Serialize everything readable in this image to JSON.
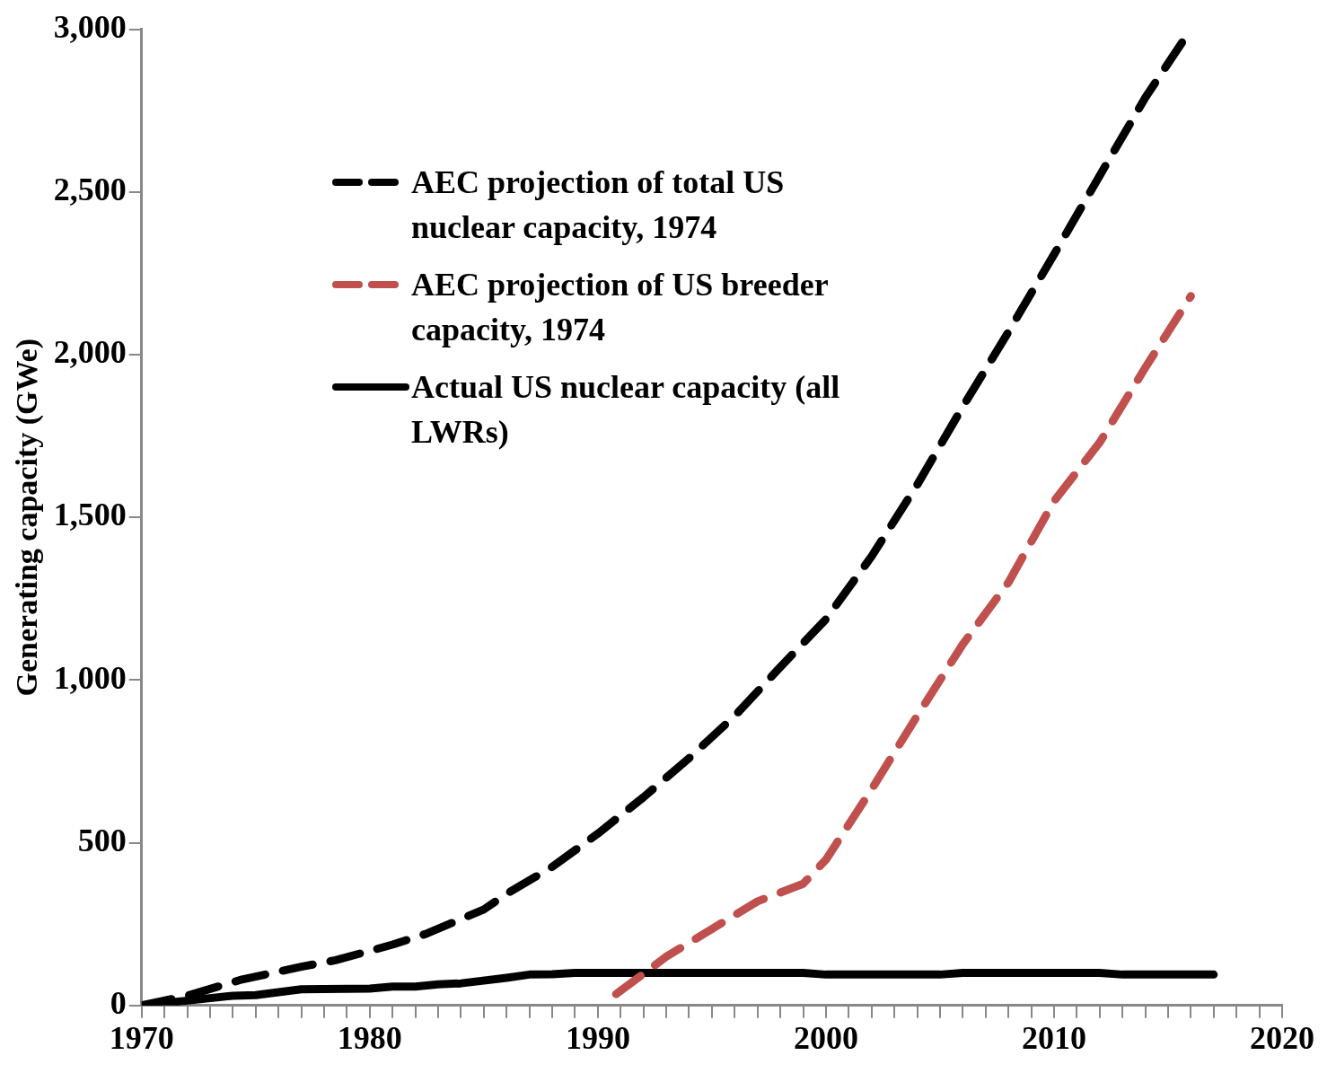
{
  "chart_data": {
    "type": "line",
    "ylabel": "Generating capacity (GWe)",
    "xlim": [
      1970,
      2020
    ],
    "xticks": [
      1970,
      {
        "value": 1971,
        "label": null
      },
      {
        "value": 1972,
        "label": null
      },
      {
        "value": 1973,
        "label": null
      },
      {
        "value": 1974,
        "label": null
      },
      {
        "value": 1975,
        "label": null
      },
      {
        "value": 1976,
        "label": null
      },
      {
        "value": 1977,
        "label": null
      },
      {
        "value": 1978,
        "label": null
      },
      {
        "value": 1979,
        "label": null
      },
      1980,
      {
        "value": 1981,
        "label": null
      },
      {
        "value": 1982,
        "label": null
      },
      {
        "value": 1983,
        "label": null
      },
      {
        "value": 1984,
        "label": null
      },
      {
        "value": 1985,
        "label": null
      },
      {
        "value": 1986,
        "label": null
      },
      {
        "value": 1987,
        "label": null
      },
      {
        "value": 1988,
        "label": null
      },
      {
        "value": 1989,
        "label": null
      },
      1990,
      {
        "value": 1991,
        "label": null
      },
      {
        "value": 1992,
        "label": null
      },
      {
        "value": 1993,
        "label": null
      },
      {
        "value": 1994,
        "label": null
      },
      {
        "value": 1995,
        "label": null
      },
      {
        "value": 1996,
        "label": null
      },
      {
        "value": 1997,
        "label": null
      },
      {
        "value": 1998,
        "label": null
      },
      {
        "value": 1999,
        "label": null
      },
      2000,
      {
        "value": 2001,
        "label": null
      },
      {
        "value": 2002,
        "label": null
      },
      {
        "value": 2003,
        "label": null
      },
      {
        "value": 2004,
        "label": null
      },
      {
        "value": 2005,
        "label": null
      },
      {
        "value": 2006,
        "label": null
      },
      {
        "value": 2007,
        "label": null
      },
      {
        "value": 2008,
        "label": null
      },
      {
        "value": 2009,
        "label": null
      },
      2010,
      {
        "value": 2011,
        "label": null
      },
      {
        "value": 2012,
        "label": null
      },
      {
        "value": 2013,
        "label": null
      },
      {
        "value": 2014,
        "label": null
      },
      {
        "value": 2015,
        "label": null
      },
      {
        "value": 2016,
        "label": null
      },
      {
        "value": 2017,
        "label": null
      },
      {
        "value": 2018,
        "label": null
      },
      {
        "value": 2019,
        "label": null
      },
      2020
    ],
    "ylim": [
      0,
      3000
    ],
    "yticks": [
      {
        "value": 0,
        "label": "0"
      },
      {
        "value": 500,
        "label": "500"
      },
      {
        "value": 1000,
        "label": "1,000"
      },
      {
        "value": 1500,
        "label": "1,500"
      },
      {
        "value": 2000,
        "label": "2,000"
      },
      {
        "value": 2500,
        "label": "2,500"
      },
      {
        "value": 3000,
        "label": "3,000"
      }
    ],
    "grid": false,
    "legend": "top left",
    "marker": "none",
    "series": [
      {
        "name": "AEC projection of total US nuclear capacity, 1974",
        "color": "#000000",
        "line_style": "dashed",
        "x": [
          1970,
          1972,
          1974.4,
          1977,
          1978.5,
          1981,
          1982.5,
          1985,
          1986,
          1988,
          1990,
          1992,
          1994,
          1996,
          1998,
          2000,
          2002,
          2004,
          2006,
          2008,
          2010,
          2012,
          2014,
          2016
        ],
        "values": [
          0,
          30,
          80,
          119,
          139,
          187,
          221,
          295,
          343,
          426,
          528,
          640,
          760,
          890,
          1040,
          1187,
          1380,
          1600,
          1840,
          2070,
          2308,
          2550,
          2790,
          3000
        ]
      },
      {
        "name": "AEC projection of US breeder capacity, 1974",
        "color": "#c0504d",
        "line_style": "dashed",
        "x": [
          1990.8,
          1993,
          1995,
          1997,
          1999,
          2000,
          2002,
          2004,
          2006,
          2008,
          2010,
          2012,
          2014,
          2016
        ],
        "values": [
          35,
          150,
          235,
          320,
          374,
          448,
          664,
          890,
          1110,
          1300,
          1550,
          1730,
          1960,
          2180
        ]
      },
      {
        "name": "Actual US nuclear capacity (all LWRs)",
        "color": "#000000",
        "line_style": "solid",
        "x": [
          1970,
          1972,
          1974,
          1975,
          1977,
          1980,
          1981,
          1982,
          1983,
          1984,
          1986,
          1987,
          1988,
          1989,
          1999,
          2000,
          2005,
          2006,
          2012,
          2013,
          2017
        ],
        "values": [
          0,
          15,
          30,
          32,
          50,
          52,
          58,
          58,
          65,
          68,
          85,
          95,
          96,
          100,
          100,
          95,
          95,
          100,
          100,
          95,
          95
        ]
      }
    ]
  }
}
